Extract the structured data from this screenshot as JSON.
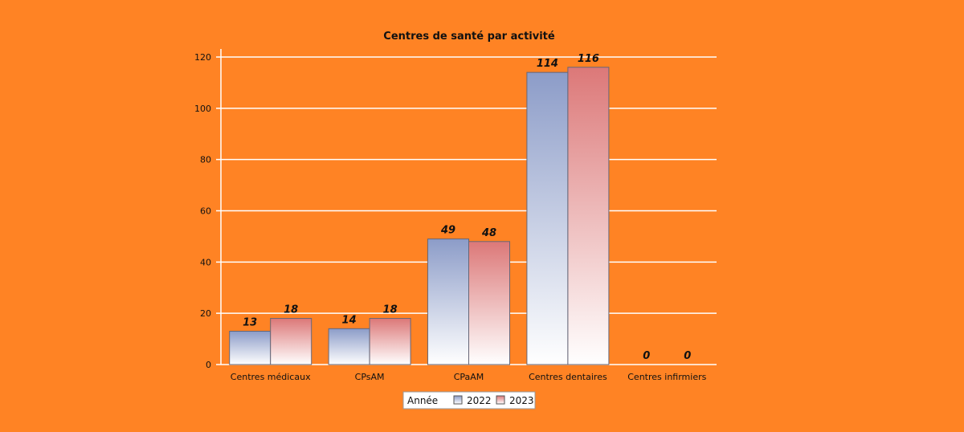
{
  "colors": {
    "background": "#FF8324",
    "series_2022": "#8C9CC8",
    "series_2023": "#DC7878"
  },
  "chart_data": {
    "type": "bar",
    "title": "Centres de santé par activité",
    "categories": [
      "Centres médicaux",
      "CPsAM",
      "CPaAM",
      "Centres dentaires",
      "Centres infirmiers"
    ],
    "series": [
      {
        "name": "2022",
        "values": [
          13,
          14,
          49,
          114,
          0
        ]
      },
      {
        "name": "2023",
        "values": [
          18,
          18,
          48,
          116,
          0
        ]
      }
    ],
    "ylim": [
      0,
      120
    ],
    "yticks": [
      0,
      20,
      40,
      60,
      80,
      100,
      120
    ],
    "grid": true,
    "legend_title": "Année",
    "legend_position": "bottom"
  }
}
